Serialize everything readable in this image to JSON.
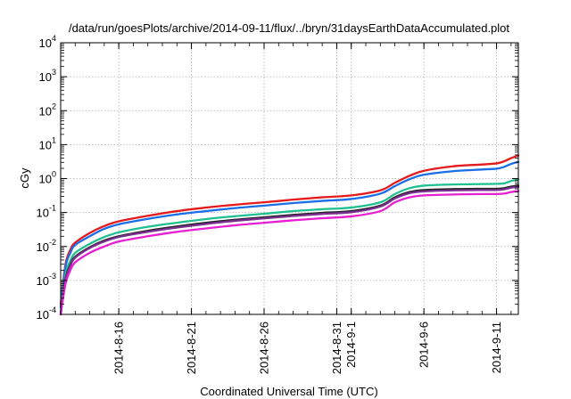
{
  "chart_data": {
    "type": "line",
    "title": "/data/run/goesPlots/archive/2014-09-11/flux/../bryn/31daysEarthDataAccumulated.plot",
    "xlabel": "Coordinated Universal Time (UTC)",
    "ylabel": "cGy",
    "y_scale": "log",
    "ylim": [
      0.0001,
      10000
    ],
    "xlim": [
      "2014-08-12",
      "2014-09-12 12:00"
    ],
    "grid": true,
    "legend": "none",
    "x_ticks": [
      "2014-8-16",
      "2014-8-21",
      "2014-8-26",
      "2014-8-31",
      "2014-9-1",
      "2014-9-6",
      "2014-9-11"
    ],
    "y_ticks": [
      {
        "base": "10",
        "exp": "-4",
        "value": 0.0001
      },
      {
        "base": "10",
        "exp": "-3",
        "value": 0.001
      },
      {
        "base": "10",
        "exp": "-2",
        "value": 0.01
      },
      {
        "base": "10",
        "exp": "-1",
        "value": 0.1
      },
      {
        "base": "10",
        "exp": "0",
        "value": 1
      },
      {
        "base": "10",
        "exp": "1",
        "value": 10
      },
      {
        "base": "10",
        "exp": "2",
        "value": 100
      },
      {
        "base": "10",
        "exp": "3",
        "value": 1000
      },
      {
        "base": "10",
        "exp": "4",
        "value": 10000
      }
    ],
    "x": [
      "2014-08-12",
      "2014-08-12 08:00",
      "2014-08-12 16:00",
      "2014-08-13",
      "2014-08-14",
      "2014-08-15",
      "2014-08-16",
      "2014-08-18",
      "2014-08-20",
      "2014-08-22",
      "2014-08-24",
      "2014-08-26",
      "2014-08-28",
      "2014-08-30",
      "2014-09-01",
      "2014-09-03",
      "2014-09-04",
      "2014-09-05",
      "2014-09-06",
      "2014-09-08",
      "2014-09-10",
      "2014-09-11",
      "2014-09-11 12:00",
      "2014-09-12",
      "2014-09-12 12:00"
    ],
    "series": [
      {
        "color": "#e41a1c",
        "values": [
          0.0002,
          0.003,
          0.008,
          0.013,
          0.025,
          0.04,
          0.055,
          0.08,
          0.11,
          0.14,
          0.17,
          0.2,
          0.24,
          0.28,
          0.32,
          0.45,
          0.75,
          1.2,
          1.7,
          2.3,
          2.6,
          2.8,
          3.2,
          4.0,
          4.8
        ]
      },
      {
        "color": "#1a6ee6",
        "values": [
          0.00016,
          0.0025,
          0.0065,
          0.011,
          0.02,
          0.033,
          0.045,
          0.065,
          0.088,
          0.11,
          0.135,
          0.16,
          0.19,
          0.22,
          0.25,
          0.36,
          0.6,
          0.95,
          1.3,
          1.65,
          1.85,
          1.95,
          2.2,
          2.7,
          3.1
        ]
      },
      {
        "color": "#1fbf8f",
        "values": [
          0.00011,
          0.0015,
          0.0038,
          0.0065,
          0.012,
          0.019,
          0.026,
          0.038,
          0.05,
          0.064,
          0.078,
          0.092,
          0.11,
          0.125,
          0.14,
          0.2,
          0.35,
          0.52,
          0.62,
          0.67,
          0.69,
          0.7,
          0.72,
          0.85,
          0.95
        ]
      },
      {
        "color": "#222222",
        "values": [
          0.0001,
          0.0011,
          0.0029,
          0.005,
          0.0095,
          0.015,
          0.02,
          0.029,
          0.039,
          0.05,
          0.061,
          0.072,
          0.085,
          0.098,
          0.11,
          0.16,
          0.28,
          0.4,
          0.46,
          0.49,
          0.5,
          0.5,
          0.52,
          0.58,
          0.62
        ]
      },
      {
        "color": "#7b2f8f",
        "values": [
          0.0001,
          0.00105,
          0.0027,
          0.0047,
          0.009,
          0.014,
          0.019,
          0.027,
          0.036,
          0.046,
          0.057,
          0.067,
          0.079,
          0.091,
          0.102,
          0.15,
          0.26,
          0.37,
          0.42,
          0.45,
          0.46,
          0.46,
          0.48,
          0.54,
          0.57
        ]
      },
      {
        "color": "#e81ed2",
        "values": [
          0.0001,
          0.0008,
          0.002,
          0.0034,
          0.0065,
          0.01,
          0.014,
          0.02,
          0.027,
          0.034,
          0.042,
          0.05,
          0.059,
          0.068,
          0.077,
          0.11,
          0.2,
          0.28,
          0.32,
          0.34,
          0.35,
          0.35,
          0.36,
          0.4,
          0.43
        ]
      }
    ]
  }
}
